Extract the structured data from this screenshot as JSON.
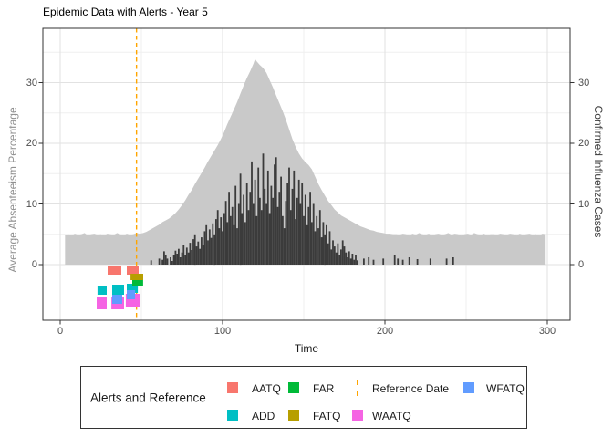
{
  "title": "Epidemic Data with Alerts - Year 5",
  "axes": {
    "x": {
      "label": "Time",
      "ticks": [
        "0",
        "100",
        "200",
        "300"
      ],
      "tick_values": [
        0,
        100,
        200,
        300
      ],
      "minor_values": [
        50,
        150,
        250
      ],
      "range": [
        -10.7,
        314
      ]
    },
    "y_left": {
      "label": "Average Absenteeism Percentage",
      "ticks": [
        "0",
        "10",
        "20",
        "30"
      ],
      "tick_values": [
        0,
        10,
        20,
        30
      ],
      "minor_values": [
        5,
        15,
        25,
        35
      ],
      "range": [
        -9.2,
        38.9
      ]
    },
    "y_right": {
      "label": "Confirmed Influenza Cases",
      "ticks": [
        "0",
        "10",
        "20",
        "30"
      ],
      "tick_values": [
        0,
        10,
        20,
        30
      ]
    }
  },
  "colors": {
    "area": "#C9C9C9",
    "bars": "#3B3B3B",
    "reference_line": "#FFA500",
    "grid_major": "#E2E2E2",
    "grid_minor": "#EFEFEF",
    "panel_border": "#333333",
    "tick_text": "#4d4d4d"
  },
  "chart_data": {
    "type": "area+bar+point",
    "title": "Epidemic Data with Alerts - Year 5",
    "xlabel": "Time",
    "ylabel_left": "Average Absenteeism Percentage",
    "ylabel_right": "Confirmed Influenza Cases",
    "xlim": [
      -10.7,
      314
    ],
    "ylim": [
      -9.2,
      38.9
    ],
    "grid": true,
    "reference_date": 47,
    "area_series": {
      "name": "Average Absenteeism Percentage (grey area)",
      "color": "#C9C9C9",
      "points": [
        [
          3,
          4.9
        ],
        [
          5,
          5.0
        ],
        [
          7,
          4.8
        ],
        [
          9,
          5.1
        ],
        [
          11,
          4.9
        ],
        [
          13,
          5.0
        ],
        [
          15,
          5.2
        ],
        [
          17,
          4.8
        ],
        [
          19,
          5.0
        ],
        [
          21,
          5.1
        ],
        [
          23,
          4.9
        ],
        [
          25,
          5.0
        ],
        [
          27,
          4.8
        ],
        [
          29,
          5.1
        ],
        [
          31,
          5.0
        ],
        [
          33,
          4.9
        ],
        [
          35,
          5.2
        ],
        [
          37,
          5.0
        ],
        [
          39,
          4.8
        ],
        [
          41,
          5.1
        ],
        [
          43,
          4.9
        ],
        [
          45,
          5.0
        ],
        [
          47,
          5.2
        ],
        [
          49,
          5.1
        ],
        [
          51,
          5.2
        ],
        [
          53,
          5.4
        ],
        [
          55,
          5.7
        ],
        [
          57,
          6.0
        ],
        [
          59,
          6.3
        ],
        [
          61,
          6.6
        ],
        [
          63,
          7.0
        ],
        [
          65,
          7.3
        ],
        [
          67,
          7.6
        ],
        [
          69,
          8.0
        ],
        [
          71,
          8.5
        ],
        [
          73,
          9.1
        ],
        [
          75,
          9.8
        ],
        [
          77,
          10.6
        ],
        [
          79,
          11.5
        ],
        [
          81,
          12.3
        ],
        [
          83,
          13.3
        ],
        [
          85,
          14.2
        ],
        [
          87,
          15.1
        ],
        [
          89,
          16.0
        ],
        [
          91,
          17.0
        ],
        [
          93,
          17.9
        ],
        [
          95,
          18.8
        ],
        [
          97,
          19.7
        ],
        [
          99,
          20.7
        ],
        [
          101,
          21.9
        ],
        [
          103,
          23.2
        ],
        [
          105,
          24.4
        ],
        [
          107,
          25.6
        ],
        [
          109,
          26.8
        ],
        [
          111,
          28.2
        ],
        [
          113,
          29.5
        ],
        [
          115,
          30.8
        ],
        [
          117,
          31.9
        ],
        [
          119,
          33.1
        ],
        [
          120,
          33.9
        ],
        [
          121,
          33.5
        ],
        [
          123,
          32.9
        ],
        [
          125,
          32.4
        ],
        [
          127,
          31.6
        ],
        [
          129,
          30.4
        ],
        [
          131,
          29.2
        ],
        [
          133,
          27.9
        ],
        [
          135,
          26.6
        ],
        [
          137,
          25.3
        ],
        [
          139,
          23.9
        ],
        [
          141,
          22.3
        ],
        [
          143,
          20.7
        ],
        [
          145,
          19.4
        ],
        [
          147,
          18.3
        ],
        [
          149,
          17.5
        ],
        [
          151,
          16.9
        ],
        [
          153,
          16.4
        ],
        [
          155,
          15.7
        ],
        [
          157,
          14.5
        ],
        [
          159,
          13.3
        ],
        [
          161,
          12.3
        ],
        [
          163,
          11.4
        ],
        [
          165,
          10.5
        ],
        [
          167,
          9.8
        ],
        [
          169,
          9.1
        ],
        [
          171,
          8.6
        ],
        [
          173,
          8.1
        ],
        [
          175,
          7.8
        ],
        [
          177,
          7.5
        ],
        [
          179,
          7.2
        ],
        [
          181,
          6.9
        ],
        [
          183,
          6.6
        ],
        [
          185,
          6.3
        ],
        [
          187,
          6.1
        ],
        [
          189,
          5.9
        ],
        [
          191,
          5.7
        ],
        [
          193,
          5.6
        ],
        [
          195,
          5.4
        ],
        [
          197,
          5.3
        ],
        [
          199,
          5.2
        ],
        [
          201,
          5.1
        ],
        [
          203,
          5.1
        ],
        [
          205,
          5.0
        ],
        [
          207,
          5.0
        ],
        [
          209,
          4.9
        ],
        [
          211,
          5.1
        ],
        [
          213,
          5.0
        ],
        [
          215,
          4.8
        ],
        [
          217,
          5.1
        ],
        [
          219,
          4.9
        ],
        [
          221,
          5.2
        ],
        [
          223,
          5.0
        ],
        [
          225,
          4.9
        ],
        [
          227,
          5.1
        ],
        [
          229,
          4.8
        ],
        [
          231,
          5.0
        ],
        [
          233,
          5.1
        ],
        [
          235,
          4.9
        ],
        [
          237,
          5.0
        ],
        [
          239,
          5.2
        ],
        [
          241,
          4.9
        ],
        [
          243,
          5.1
        ],
        [
          245,
          5.0
        ],
        [
          247,
          4.8
        ],
        [
          249,
          5.0
        ],
        [
          251,
          5.1
        ],
        [
          253,
          4.9
        ],
        [
          255,
          5.2
        ],
        [
          257,
          5.0
        ],
        [
          259,
          4.9
        ],
        [
          261,
          5.1
        ],
        [
          263,
          4.8
        ],
        [
          265,
          5.0
        ],
        [
          267,
          5.0
        ],
        [
          269,
          4.9
        ],
        [
          271,
          5.1
        ],
        [
          273,
          5.0
        ],
        [
          275,
          4.9
        ],
        [
          277,
          5.1
        ],
        [
          279,
          5.0
        ],
        [
          281,
          4.8
        ],
        [
          283,
          5.1
        ],
        [
          285,
          4.9
        ],
        [
          287,
          5.0
        ],
        [
          289,
          5.1
        ],
        [
          291,
          4.9
        ],
        [
          293,
          5.0
        ],
        [
          295,
          4.8
        ],
        [
          297,
          5.1
        ],
        [
          299,
          5.0
        ]
      ]
    },
    "bar_series": {
      "name": "Confirmed Influenza Cases (black bars)",
      "color": "#3B3B3B",
      "points": [
        [
          56,
          0.7
        ],
        [
          61,
          1.0
        ],
        [
          63,
          0.8
        ],
        [
          64,
          2.2
        ],
        [
          65,
          1.5
        ],
        [
          66,
          1.0
        ],
        [
          68,
          1.2
        ],
        [
          69,
          0.6
        ],
        [
          70,
          1.5
        ],
        [
          71,
          2.3
        ],
        [
          72,
          1.8
        ],
        [
          73,
          2.6
        ],
        [
          74,
          1.2
        ],
        [
          75,
          2.0
        ],
        [
          76,
          3.3
        ],
        [
          77,
          1.5
        ],
        [
          78,
          2.8
        ],
        [
          79,
          2.0
        ],
        [
          80,
          3.6
        ],
        [
          81,
          2.4
        ],
        [
          82,
          4.2
        ],
        [
          83,
          5.0
        ],
        [
          84,
          3.0
        ],
        [
          85,
          3.8
        ],
        [
          86,
          2.6
        ],
        [
          87,
          4.5
        ],
        [
          88,
          3.2
        ],
        [
          89,
          5.5
        ],
        [
          90,
          6.5
        ],
        [
          91,
          4.0
        ],
        [
          92,
          5.8
        ],
        [
          93,
          4.4
        ],
        [
          94,
          6.8
        ],
        [
          95,
          5.0
        ],
        [
          96,
          7.5
        ],
        [
          97,
          9.0
        ],
        [
          98,
          6.0
        ],
        [
          99,
          7.8
        ],
        [
          100,
          5.5
        ],
        [
          101,
          8.5
        ],
        [
          102,
          10.5
        ],
        [
          103,
          7.0
        ],
        [
          104,
          12.0
        ],
        [
          105,
          8.0
        ],
        [
          106,
          9.5
        ],
        [
          107,
          6.5
        ],
        [
          108,
          13.0
        ],
        [
          109,
          6.0
        ],
        [
          110,
          10.0
        ],
        [
          111,
          15.0
        ],
        [
          112,
          8.5
        ],
        [
          113,
          11.5
        ],
        [
          114,
          7.0
        ],
        [
          115,
          13.5
        ],
        [
          116,
          9.0
        ],
        [
          117,
          12.0
        ],
        [
          118,
          17.0
        ],
        [
          119,
          10.0
        ],
        [
          120,
          14.0
        ],
        [
          121,
          8.0
        ],
        [
          122,
          16.0
        ],
        [
          123,
          11.0
        ],
        [
          124,
          9.0
        ],
        [
          125,
          18.3
        ],
        [
          126,
          12.5
        ],
        [
          127,
          10.0
        ],
        [
          128,
          15.5
        ],
        [
          129,
          8.5
        ],
        [
          130,
          13.0
        ],
        [
          131,
          11.0
        ],
        [
          132,
          16.5
        ],
        [
          133,
          17.7
        ],
        [
          134,
          9.5
        ],
        [
          135,
          12.0
        ],
        [
          136,
          14.5
        ],
        [
          137,
          8.0
        ],
        [
          138,
          6.0
        ],
        [
          139,
          10.5
        ],
        [
          140,
          13.5
        ],
        [
          141,
          16.0
        ],
        [
          142,
          9.0
        ],
        [
          143,
          12.5
        ],
        [
          144,
          15.5
        ],
        [
          145,
          7.5
        ],
        [
          146,
          11.0
        ],
        [
          147,
          14.0
        ],
        [
          148,
          10.0
        ],
        [
          149,
          13.5
        ],
        [
          150,
          8.0
        ],
        [
          151,
          11.5
        ],
        [
          152,
          6.5
        ],
        [
          153,
          9.5
        ],
        [
          154,
          12.0
        ],
        [
          155,
          7.0
        ],
        [
          156,
          10.0
        ],
        [
          157,
          5.5
        ],
        [
          158,
          8.0
        ],
        [
          159,
          6.0
        ],
        [
          160,
          9.0
        ],
        [
          161,
          4.5
        ],
        [
          162,
          7.0
        ],
        [
          163,
          5.0
        ],
        [
          164,
          6.5
        ],
        [
          165,
          3.5
        ],
        [
          166,
          5.5
        ],
        [
          167,
          2.5
        ],
        [
          168,
          4.0
        ],
        [
          169,
          3.0
        ],
        [
          170,
          2.0
        ],
        [
          171,
          3.5
        ],
        [
          172,
          1.5
        ],
        [
          173,
          2.5
        ],
        [
          174,
          4.0
        ],
        [
          175,
          3.0
        ],
        [
          176,
          2.0
        ],
        [
          177,
          1.2
        ],
        [
          178,
          2.2
        ],
        [
          179,
          1.0
        ],
        [
          180,
          1.8
        ],
        [
          181,
          0.8
        ],
        [
          182,
          1.5
        ],
        [
          183,
          0.7
        ],
        [
          187,
          1.0
        ],
        [
          190,
          1.2
        ],
        [
          193,
          0.8
        ],
        [
          199,
          1.0
        ],
        [
          206,
          1.5
        ],
        [
          208,
          1.0
        ],
        [
          211,
          0.8
        ],
        [
          215,
          1.2
        ],
        [
          220,
          0.9
        ],
        [
          228,
          1.0
        ],
        [
          238,
          1.0
        ],
        [
          242,
          1.2
        ]
      ]
    },
    "alerts": [
      {
        "type": "AATQ",
        "color": "#F8766D",
        "rects": [
          [
            29.2,
            -0.3,
            37.6,
            -1.65
          ],
          [
            41.0,
            -0.3,
            48.3,
            -1.65
          ]
        ]
      },
      {
        "type": "ADD",
        "color": "#00BFC4",
        "rects": [
          [
            23.0,
            -3.46,
            28.7,
            -4.96
          ],
          [
            32.0,
            -3.31,
            39.3,
            -4.96
          ],
          [
            41.0,
            -3.16,
            47.8,
            -4.66
          ]
        ]
      },
      {
        "type": "FAR",
        "color": "#00BA38",
        "rects": [
          [
            44.4,
            -2.56,
            51.1,
            -3.46
          ]
        ]
      },
      {
        "type": "FATQ",
        "color": "#B79F00",
        "rects": [
          [
            43.3,
            -1.5,
            51.1,
            -2.56
          ]
        ]
      },
      {
        "type": "WAATQ",
        "color": "#F564E3",
        "rects": [
          [
            22.5,
            -5.26,
            28.7,
            -7.37
          ],
          [
            31.5,
            -5.26,
            39.3,
            -7.37
          ],
          [
            40.4,
            -4.81,
            48.9,
            -6.92
          ]
        ]
      },
      {
        "type": "WFATQ",
        "color": "#619CFF",
        "rects": [
          [
            32.0,
            -4.96,
            38.2,
            -6.47
          ],
          [
            41.0,
            -4.21,
            46.1,
            -5.71
          ]
        ]
      }
    ]
  },
  "legend": {
    "title": "Alerts and Reference",
    "items": [
      {
        "label": "AATQ",
        "swatch": "square",
        "color": "#F8766D",
        "col": 0,
        "row": 0
      },
      {
        "label": "ADD",
        "swatch": "square",
        "color": "#00BFC4",
        "col": 0,
        "row": 1
      },
      {
        "label": "FAR",
        "swatch": "square",
        "color": "#00BA38",
        "col": 1,
        "row": 0
      },
      {
        "label": "FATQ",
        "swatch": "square",
        "color": "#B79F00",
        "col": 1,
        "row": 1
      },
      {
        "label": "Reference Date",
        "swatch": "dashed-line",
        "color": "#FFA500",
        "col": 2,
        "row": 0
      },
      {
        "label": "WAATQ",
        "swatch": "square",
        "color": "#F564E3",
        "col": 2,
        "row": 1
      },
      {
        "label": "WFATQ",
        "swatch": "square",
        "color": "#619CFF",
        "col": 3,
        "row": 0
      }
    ]
  }
}
